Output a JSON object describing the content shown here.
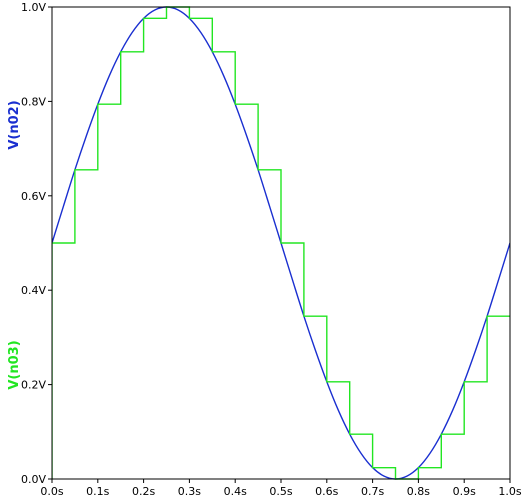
{
  "chart_data": {
    "type": "line",
    "title": "",
    "xlabel": "",
    "ylabel": "",
    "xlim": [
      0,
      1
    ],
    "ylim": [
      0,
      1
    ],
    "grid": false,
    "x_ticks": [
      0,
      0.1,
      0.2,
      0.3,
      0.4,
      0.5,
      0.6,
      0.7,
      0.8,
      0.9,
      1.0
    ],
    "x_tick_labels": [
      "0.0s",
      "0.1s",
      "0.2s",
      "0.3s",
      "0.4s",
      "0.5s",
      "0.6s",
      "0.7s",
      "0.8s",
      "0.9s",
      "1.0s"
    ],
    "y_ticks": [
      0,
      0.2,
      0.4,
      0.6,
      0.8,
      1.0
    ],
    "y_tick_labels": [
      "0.0V",
      "0.2V",
      "0.4V",
      "0.6V",
      "0.8V",
      "1.0V"
    ],
    "series": [
      {
        "name": "V(n02)",
        "color": "#1a2fd0",
        "style": "smooth",
        "x": [
          0,
          0.025,
          0.05,
          0.075,
          0.1,
          0.125,
          0.15,
          0.175,
          0.2,
          0.225,
          0.25,
          0.275,
          0.3,
          0.325,
          0.35,
          0.375,
          0.4,
          0.425,
          0.45,
          0.475,
          0.5,
          0.525,
          0.55,
          0.575,
          0.6,
          0.625,
          0.65,
          0.675,
          0.7,
          0.725,
          0.75,
          0.775,
          0.8,
          0.825,
          0.85,
          0.875,
          0.9,
          0.925,
          0.95,
          0.975,
          1.0
        ],
        "values": [
          0.5,
          0.578,
          0.655,
          0.727,
          0.794,
          0.854,
          0.905,
          0.946,
          0.976,
          0.994,
          1.0,
          0.994,
          0.976,
          0.946,
          0.905,
          0.854,
          0.794,
          0.727,
          0.655,
          0.578,
          0.5,
          0.422,
          0.345,
          0.273,
          0.206,
          0.146,
          0.095,
          0.054,
          0.024,
          0.006,
          0.0,
          0.006,
          0.024,
          0.054,
          0.095,
          0.146,
          0.206,
          0.273,
          0.345,
          0.422,
          0.5
        ]
      },
      {
        "name": "V(n03)",
        "color": "#22e622",
        "style": "step",
        "x": [
          0,
          0.05,
          0.1,
          0.15,
          0.2,
          0.25,
          0.3,
          0.35,
          0.4,
          0.45,
          0.5,
          0.55,
          0.6,
          0.65,
          0.7,
          0.75,
          0.8,
          0.85,
          0.9,
          0.95,
          1.0
        ],
        "values": [
          0.5,
          0.655,
          0.794,
          0.905,
          0.976,
          1.0,
          0.976,
          0.905,
          0.794,
          0.655,
          0.5,
          0.345,
          0.206,
          0.095,
          0.024,
          0.0,
          0.024,
          0.095,
          0.206,
          0.345,
          0.345
        ]
      }
    ]
  }
}
